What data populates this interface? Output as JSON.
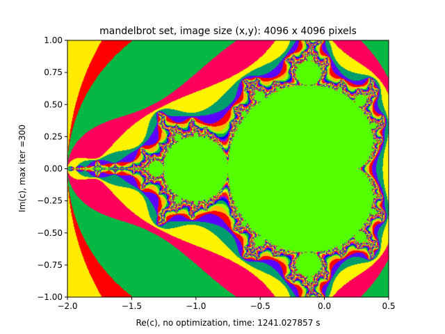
{
  "chart_data": {
    "type": "heatmap",
    "title": "mandelbrot set, image size (x,y): 4096 x 4096 pixels",
    "xlabel": "Re(c), no optimization, time: 1241.027857 s",
    "ylabel": "Im(c), max iter =300",
    "xlim": [
      -2.0,
      0.5
    ],
    "ylim": [
      -1.0,
      1.0
    ],
    "x_ticks": [
      -2.0,
      -1.5,
      -1.0,
      -0.5,
      0.0,
      0.5
    ],
    "x_tick_labels": [
      "−2.0",
      "−1.5",
      "−1.0",
      "−0.5",
      "0.0",
      "0.5"
    ],
    "y_ticks": [
      -1.0,
      -0.75,
      -0.5,
      -0.25,
      0.0,
      0.25,
      0.5,
      0.75,
      1.0
    ],
    "y_tick_labels": [
      "−1.00",
      "−0.75",
      "−0.50",
      "−0.25",
      "0.00",
      "0.25",
      "0.50",
      "0.75",
      "1.00"
    ],
    "max_iter": 300,
    "image_size": [
      4096,
      4096
    ],
    "colormap": "prism",
    "grid": false,
    "colors": {
      "outside": "#ff0000",
      "inside": "#55ff00"
    }
  }
}
